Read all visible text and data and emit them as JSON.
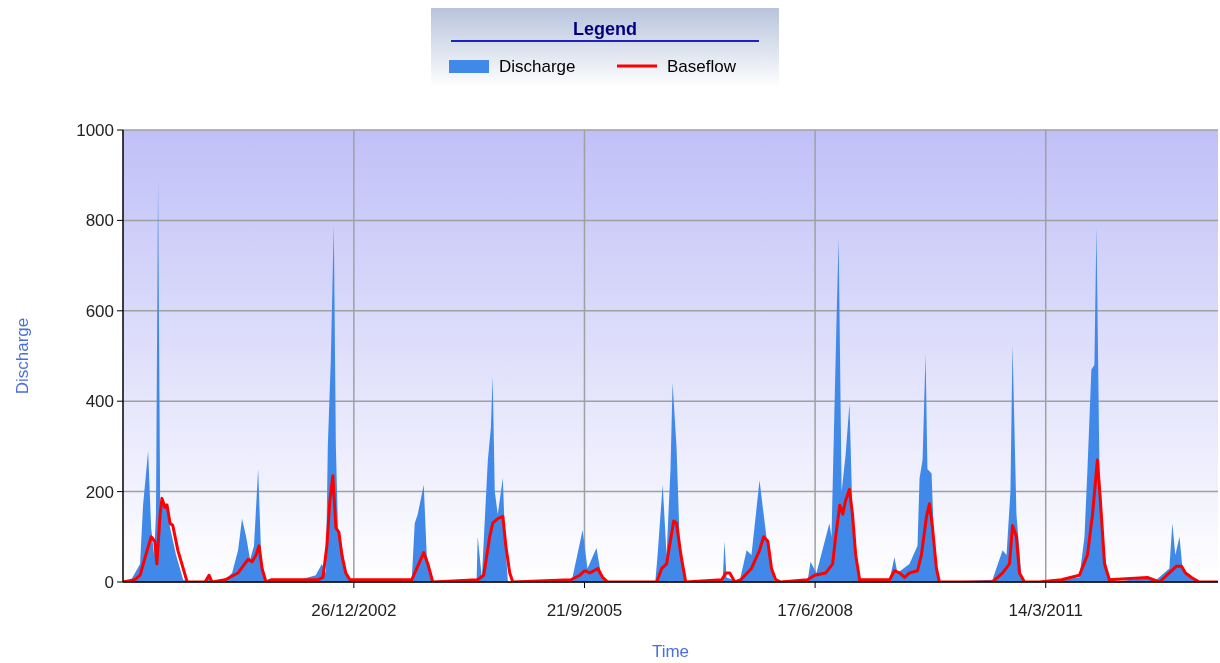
{
  "chart_data": {
    "type": "area",
    "xlabel": "Time",
    "ylabel": "Discharge",
    "legend_title": "Legend",
    "legend": "top",
    "xlim": [
      "2000-03-30",
      "2013-03-30"
    ],
    "xticks": [
      {
        "value": "2002-12-26",
        "label": "26/12/2002"
      },
      {
        "value": "2005-09-21",
        "label": "21/9/2005"
      },
      {
        "value": "2008-06-17",
        "label": "17/6/2008"
      },
      {
        "value": "2011-03-14",
        "label": "14/3/2011"
      }
    ],
    "ylim": [
      0,
      1000
    ],
    "yticks": [
      0,
      200,
      400,
      600,
      800,
      1000
    ],
    "grid": true,
    "series": [
      {
        "name": "Discharge",
        "color": "#4189e8",
        "x": [
          "2000-03-30",
          "2000-05-04",
          "2000-05-21",
          "2000-06-12",
          "2000-06-25",
          "2000-07-17",
          "2000-07-30",
          "2000-08-12",
          "2000-08-20",
          "2000-08-29",
          "2000-09-07",
          "2000-09-20",
          "2000-10-07",
          "2000-10-20",
          "2000-11-15",
          "2000-12-16",
          "2001-01-15",
          "2001-03-21",
          "2001-04-07",
          "2001-04-20",
          "2001-06-16",
          "2001-07-16",
          "2001-08-11",
          "2001-08-28",
          "2001-09-15",
          "2001-10-02",
          "2001-10-19",
          "2001-11-06",
          "2001-11-19",
          "2001-12-06",
          "2002-01-04",
          "2002-05-06",
          "2002-07-14",
          "2002-08-09",
          "2002-08-27",
          "2002-09-04",
          "2002-09-17",
          "2002-09-30",
          "2002-10-09",
          "2002-10-18",
          "2002-11-04",
          "2002-11-21",
          "2002-12-17",
          "2003-03-01",
          "2003-09-03",
          "2003-09-16",
          "2003-09-29",
          "2003-10-25",
          "2003-11-07",
          "2003-11-29",
          "2004-06-10",
          "2004-06-15",
          "2004-07-03",
          "2004-07-29",
          "2004-08-11",
          "2004-08-19",
          "2004-08-28",
          "2004-09-10",
          "2004-10-02",
          "2004-10-11",
          "2004-10-24",
          "2005-07-15",
          "2005-07-31",
          "2005-09-13",
          "2005-10-04",
          "2005-11-12",
          "2005-12-04",
          "2006-01-08",
          "2006-07-25",
          "2006-08-04",
          "2006-08-26",
          "2006-09-12",
          "2006-09-29",
          "2006-10-08",
          "2006-10-25",
          "2006-11-07",
          "2006-11-29",
          "2006-12-12",
          "2007-05-13",
          "2007-05-21",
          "2007-05-30",
          "2007-07-25",
          "2007-08-25",
          "2007-09-15",
          "2007-09-28",
          "2007-10-20",
          "2007-11-02",
          "2007-11-19",
          "2007-12-11",
          "2007-12-24",
          "2008-05-15",
          "2008-05-28",
          "2008-06-23",
          "2008-08-18",
          "2008-08-27",
          "2008-09-18",
          "2008-09-27",
          "2008-10-10",
          "2008-10-27",
          "2008-11-13",
          "2008-11-26",
          "2008-12-18",
          "2008-12-27",
          "2009-05-06",
          "2009-05-27",
          "2009-06-09",
          "2009-07-31",
          "2009-09-04",
          "2009-09-13",
          "2009-09-26",
          "2009-10-09",
          "2009-10-17",
          "2009-11-04",
          "2009-11-17",
          "2009-12-08",
          "2010-07-26",
          "2010-09-08",
          "2010-09-25",
          "2010-10-12",
          "2010-10-21",
          "2010-11-07",
          "2010-11-29",
          "2010-12-21",
          "2011-08-07",
          "2011-08-29",
          "2011-09-11",
          "2011-09-28",
          "2011-10-11",
          "2011-10-20",
          "2011-11-02",
          "2011-11-24",
          "2011-12-15",
          "2012-01-06",
          "2012-05-28",
          "2012-07-06",
          "2012-08-31",
          "2012-09-13",
          "2012-09-26",
          "2012-10-14",
          "2012-10-27",
          "2012-11-26",
          "2013-01-08",
          "2013-03-30"
        ],
        "values": [
          0,
          5,
          20,
          40,
          170,
          290,
          120,
          60,
          150,
          890,
          180,
          170,
          175,
          120,
          60,
          5,
          0,
          0,
          15,
          0,
          5,
          20,
          70,
          140,
          100,
          50,
          80,
          250,
          60,
          5,
          0,
          5,
          15,
          40,
          20,
          300,
          490,
          790,
          300,
          120,
          80,
          20,
          0,
          5,
          5,
          130,
          150,
          215,
          60,
          0,
          0,
          100,
          10,
          270,
          340,
          455,
          200,
          150,
          230,
          100,
          0,
          0,
          10,
          115,
          30,
          75,
          10,
          0,
          0,
          60,
          215,
          60,
          250,
          440,
          300,
          100,
          10,
          0,
          0,
          90,
          10,
          0,
          70,
          60,
          120,
          225,
          170,
          100,
          30,
          0,
          0,
          45,
          20,
          130,
          100,
          580,
          760,
          200,
          280,
          395,
          150,
          20,
          0,
          5,
          55,
          20,
          40,
          80,
          230,
          270,
          505,
          250,
          240,
          60,
          0,
          5,
          70,
          60,
          200,
          525,
          150,
          10,
          0,
          10,
          100,
          250,
          470,
          480,
          785,
          250,
          60,
          5,
          0,
          10,
          5,
          30,
          130,
          60,
          100,
          30,
          10,
          0,
          0
        ]
      },
      {
        "name": "Baseflow",
        "type": "line",
        "color": "#ff0000",
        "x": [
          "2000-03-30",
          "2000-05-21",
          "2000-06-12",
          "2000-07-07",
          "2000-07-30",
          "2000-08-15",
          "2000-08-24",
          "2000-09-07",
          "2000-09-15",
          "2000-09-28",
          "2000-10-07",
          "2000-10-20",
          "2000-11-01",
          "2000-11-23",
          "2000-12-16",
          "2001-01-02",
          "2001-03-21",
          "2001-04-07",
          "2001-04-20",
          "2001-06-16",
          "2001-08-11",
          "2001-09-23",
          "2001-10-11",
          "2001-10-28",
          "2001-11-10",
          "2001-11-23",
          "2001-12-10",
          "2002-01-04",
          "2002-07-23",
          "2002-08-14",
          "2002-08-31",
          "2002-09-13",
          "2002-09-26",
          "2002-10-09",
          "2002-10-22",
          "2002-11-04",
          "2002-11-21",
          "2002-12-09",
          "2003-09-03",
          "2003-09-25",
          "2003-10-25",
          "2003-11-12",
          "2003-12-03",
          "2004-06-15",
          "2004-07-11",
          "2004-08-06",
          "2004-08-19",
          "2004-09-10",
          "2004-10-02",
          "2004-10-15",
          "2004-11-01",
          "2004-11-14",
          "2005-07-24",
          "2005-09-01",
          "2005-09-22",
          "2005-10-14",
          "2005-11-18",
          "2005-12-09",
          "2005-12-31",
          "2006-07-31",
          "2006-08-22",
          "2006-09-12",
          "2006-09-25",
          "2006-10-13",
          "2006-10-25",
          "2006-11-13",
          "2006-12-04",
          "2007-05-09",
          "2007-05-27",
          "2007-06-13",
          "2007-07-05",
          "2007-07-31",
          "2007-09-15",
          "2007-10-20",
          "2007-11-07",
          "2007-11-25",
          "2007-12-11",
          "2007-12-29",
          "2008-01-20",
          "2008-05-15",
          "2008-06-15",
          "2008-08-02",
          "2008-09-01",
          "2008-09-14",
          "2008-10-02",
          "2008-10-15",
          "2008-10-27",
          "2008-11-13",
          "2008-11-26",
          "2008-12-10",
          "2008-12-27",
          "2009-05-06",
          "2009-05-27",
          "2009-06-18",
          "2009-07-10",
          "2009-07-31",
          "2009-09-04",
          "2009-09-21",
          "2009-10-13",
          "2009-10-26",
          "2009-11-08",
          "2009-11-25",
          "2009-12-08",
          "2010-07-26",
          "2010-09-08",
          "2010-10-08",
          "2010-10-21",
          "2010-11-07",
          "2010-11-20",
          "2010-12-12",
          "2011-02-15",
          "2011-05-21",
          "2011-08-07",
          "2011-09-11",
          "2011-10-03",
          "2011-10-24",
          "2011-11-06",
          "2011-11-24",
          "2011-12-15",
          "2012-05-28",
          "2012-07-19",
          "2012-08-31",
          "2012-10-01",
          "2012-10-23",
          "2012-11-09",
          "2012-12-05",
          "2013-01-08",
          "2013-03-30"
        ],
        "values": [
          0,
          5,
          15,
          60,
          100,
          90,
          40,
          150,
          185,
          165,
          170,
          130,
          125,
          70,
          30,
          0,
          0,
          15,
          0,
          5,
          20,
          50,
          45,
          60,
          80,
          30,
          0,
          5,
          5,
          10,
          80,
          180,
          235,
          120,
          110,
          60,
          20,
          5,
          5,
          30,
          65,
          40,
          0,
          5,
          15,
          100,
          130,
          140,
          145,
          80,
          20,
          0,
          5,
          15,
          25,
          20,
          30,
          10,
          0,
          0,
          30,
          40,
          80,
          135,
          130,
          60,
          0,
          5,
          20,
          20,
          0,
          5,
          30,
          70,
          100,
          90,
          30,
          5,
          0,
          5,
          15,
          20,
          40,
          100,
          170,
          150,
          180,
          205,
          150,
          60,
          5,
          5,
          25,
          20,
          10,
          20,
          25,
          60,
          145,
          173,
          120,
          30,
          0,
          0,
          20,
          40,
          125,
          100,
          20,
          0,
          0,
          5,
          15,
          60,
          150,
          270,
          180,
          40,
          5,
          10,
          0,
          20,
          35,
          35,
          20,
          10,
          0,
          0
        ]
      }
    ]
  }
}
